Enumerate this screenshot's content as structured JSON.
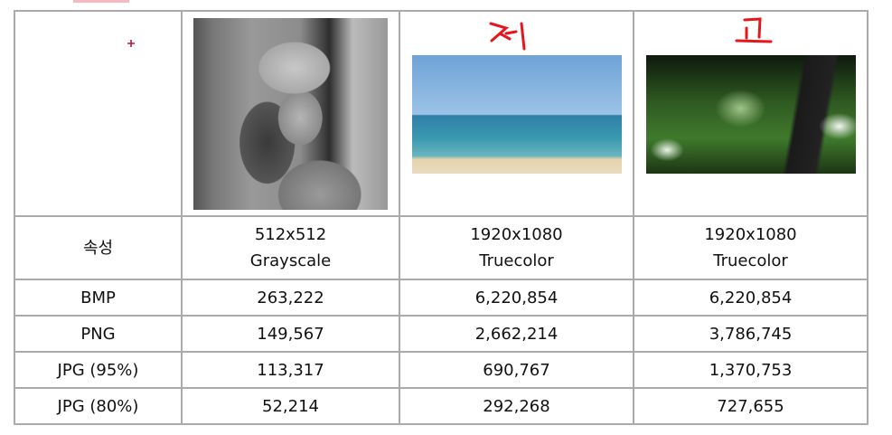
{
  "annotations": {
    "col2_handwritten": "저",
    "col3_handwritten": "고",
    "color": "#e8161c"
  },
  "table": {
    "images": [
      {
        "name": "lena-grayscale-image"
      },
      {
        "name": "beach-image"
      },
      {
        "name": "forest-image"
      }
    ],
    "rows": [
      {
        "label": "속성",
        "cells": [
          [
            "512x512",
            "Grayscale"
          ],
          [
            "1920x1080",
            "Truecolor"
          ],
          [
            "1920x1080",
            "Truecolor"
          ]
        ]
      },
      {
        "label": "BMP",
        "cells": [
          "263,222",
          "6,220,854",
          "6,220,854"
        ]
      },
      {
        "label": "PNG",
        "cells": [
          "149,567",
          "2,662,214",
          "3,786,745"
        ]
      },
      {
        "label": "JPG (95%)",
        "cells": [
          "113,317",
          "690,767",
          "1,370,753"
        ]
      },
      {
        "label": "JPG (80%)",
        "cells": [
          "52,214",
          "292,268",
          "727,655"
        ]
      }
    ]
  }
}
